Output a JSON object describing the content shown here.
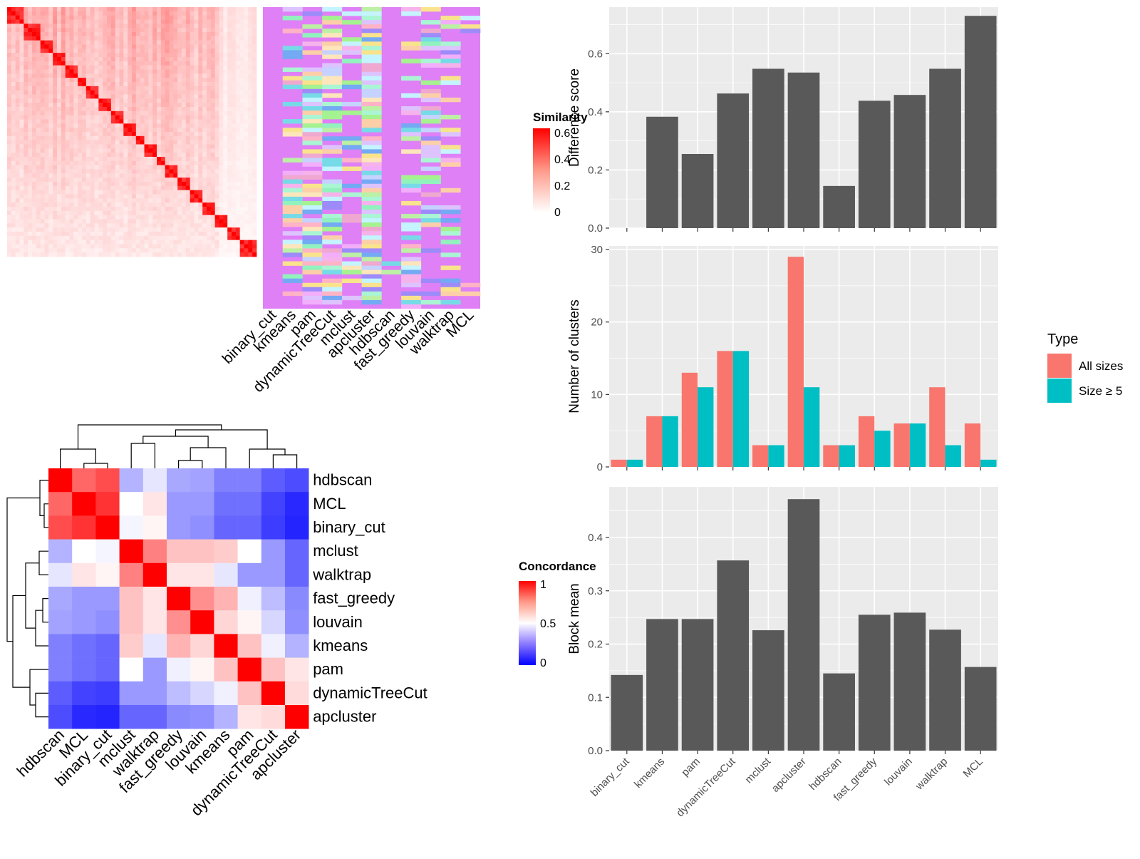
{
  "methods": [
    "binary_cut",
    "kmeans",
    "pam",
    "dynamicTreeCut",
    "mclust",
    "apcluster",
    "hdbscan",
    "fast_greedy",
    "louvain",
    "walktrap",
    "MCL"
  ],
  "colors": {
    "panel_bg": "#ebebeb",
    "grid": "#ffffff",
    "bar_gray": "#595959",
    "all_sizes": "#f8766d",
    "size_ge5": "#00bfc4",
    "default_cluster": "#df80f6",
    "heat_high": "#ff0000",
    "heat_low_blue": "#0000ff"
  },
  "similarity_heatmap": {
    "legend_title": "Similarity",
    "legend_ticks": [
      "0.6",
      "0.4",
      "0.2",
      "0"
    ],
    "cluster_palette": [
      "#fccfa8",
      "#aaf5d3",
      "#f6b3eb",
      "#fde6bb",
      "#76dbe6",
      "#efa8cf",
      "#f2aefa",
      "#ddc3ff",
      "#c6d2ff",
      "#9d8bfa",
      "#92f2be",
      "#74a9f4",
      "#f9e38c",
      "#ffb3c6",
      "#c4f4ff",
      "#a5f290",
      "#bcf0a5"
    ]
  },
  "concordance_heatmap": {
    "legend_title": "Concordance",
    "legend_ticks": [
      "1",
      "0.5",
      "0"
    ],
    "order": [
      "hdbscan",
      "MCL",
      "binary_cut",
      "mclust",
      "walktrap",
      "fast_greedy",
      "louvain",
      "kmeans",
      "pam",
      "dynamicTreeCut",
      "apcluster"
    ],
    "matrix": [
      [
        1.0,
        0.8,
        0.85,
        0.35,
        0.45,
        0.33,
        0.32,
        0.25,
        0.25,
        0.18,
        0.15
      ],
      [
        0.8,
        1.0,
        0.9,
        0.5,
        0.55,
        0.3,
        0.3,
        0.22,
        0.22,
        0.13,
        0.08
      ],
      [
        0.85,
        0.9,
        1.0,
        0.48,
        0.52,
        0.3,
        0.28,
        0.2,
        0.2,
        0.12,
        0.07
      ],
      [
        0.35,
        0.5,
        0.48,
        1.0,
        0.75,
        0.62,
        0.62,
        0.6,
        0.5,
        0.3,
        0.2
      ],
      [
        0.45,
        0.55,
        0.52,
        0.75,
        1.0,
        0.55,
        0.55,
        0.45,
        0.3,
        0.3,
        0.2
      ],
      [
        0.33,
        0.3,
        0.3,
        0.62,
        0.55,
        1.0,
        0.72,
        0.65,
        0.47,
        0.37,
        0.27
      ],
      [
        0.32,
        0.3,
        0.28,
        0.62,
        0.55,
        0.72,
        1.0,
        0.58,
        0.52,
        0.42,
        0.28
      ],
      [
        0.25,
        0.22,
        0.2,
        0.6,
        0.45,
        0.65,
        0.58,
        1.0,
        0.62,
        0.47,
        0.35
      ],
      [
        0.25,
        0.22,
        0.2,
        0.5,
        0.3,
        0.47,
        0.52,
        0.62,
        1.0,
        0.62,
        0.55
      ],
      [
        0.18,
        0.13,
        0.12,
        0.3,
        0.3,
        0.37,
        0.42,
        0.47,
        0.62,
        1.0,
        0.57
      ],
      [
        0.15,
        0.08,
        0.07,
        0.2,
        0.2,
        0.27,
        0.28,
        0.35,
        0.55,
        0.57,
        1.0
      ]
    ]
  },
  "chart_data": [
    {
      "type": "bar",
      "categories": [
        "binary_cut",
        "kmeans",
        "pam",
        "dynamicTreeCut",
        "mclust",
        "apcluster",
        "hdbscan",
        "fast_greedy",
        "louvain",
        "walktrap",
        "MCL"
      ],
      "values": [
        0.0,
        0.383,
        0.255,
        0.463,
        0.548,
        0.535,
        0.145,
        0.438,
        0.458,
        0.548,
        0.73
      ],
      "ylabel": "Difference score",
      "ylim": [
        0,
        0.76
      ],
      "yticks": [
        "0.0",
        "0.2",
        "0.4",
        "0.6"
      ],
      "grid": true
    },
    {
      "type": "bar",
      "categories": [
        "binary_cut",
        "kmeans",
        "pam",
        "dynamicTreeCut",
        "mclust",
        "apcluster",
        "hdbscan",
        "fast_greedy",
        "louvain",
        "walktrap",
        "MCL"
      ],
      "series": [
        {
          "name": "All sizes",
          "values": [
            1,
            7,
            13,
            16,
            3,
            29,
            3,
            7,
            6,
            11,
            6
          ]
        },
        {
          "name": "Size ≥ 5",
          "values": [
            1,
            7,
            11,
            16,
            3,
            11,
            3,
            5,
            6,
            3,
            1
          ]
        }
      ],
      "ylabel": "Number of clusters",
      "ylim": [
        0,
        30.5
      ],
      "yticks": [
        "0",
        "10",
        "20",
        "30"
      ],
      "legend_title": "Type",
      "legend_position": "right",
      "grid": true
    },
    {
      "type": "bar",
      "categories": [
        "binary_cut",
        "kmeans",
        "pam",
        "dynamicTreeCut",
        "mclust",
        "apcluster",
        "hdbscan",
        "fast_greedy",
        "louvain",
        "walktrap",
        "MCL"
      ],
      "values": [
        0.142,
        0.247,
        0.247,
        0.357,
        0.226,
        0.472,
        0.145,
        0.255,
        0.259,
        0.227,
        0.157
      ],
      "ylabel": "Block mean",
      "ylim": [
        0,
        0.495
      ],
      "yticks": [
        "0.0",
        "0.1",
        "0.2",
        "0.3",
        "0.4"
      ],
      "grid": true
    }
  ]
}
